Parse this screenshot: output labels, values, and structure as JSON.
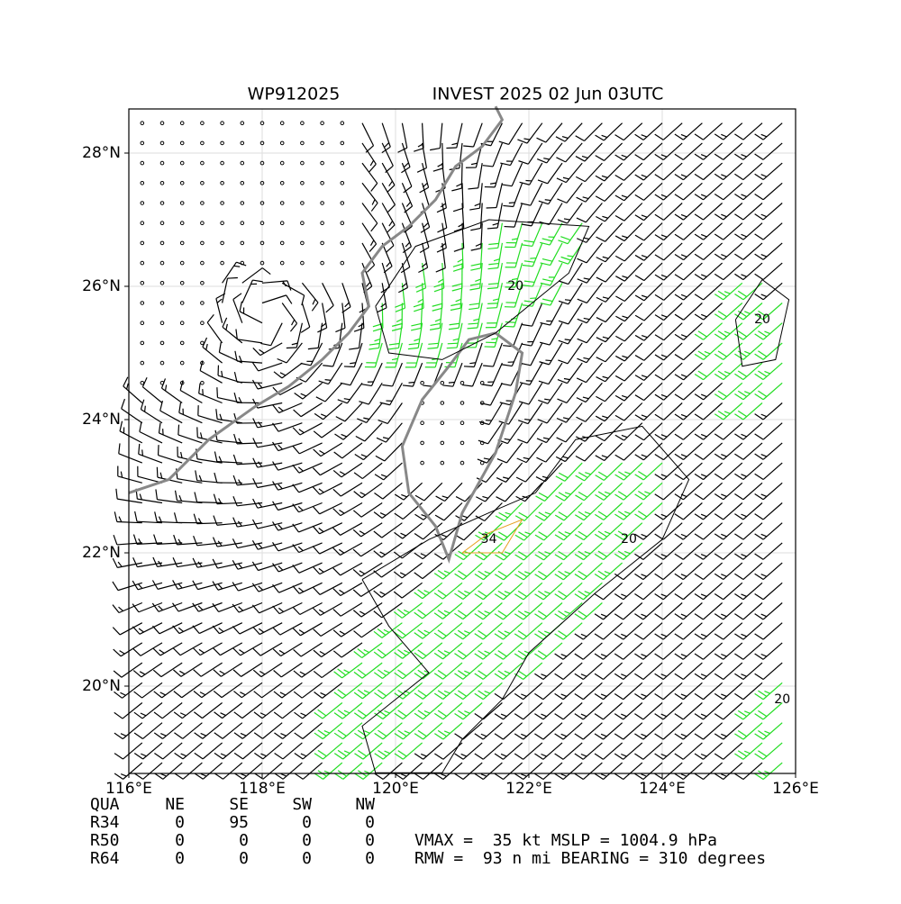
{
  "header": {
    "left": "WP912025",
    "right": "INVEST 2025 02 Jun 03UTC"
  },
  "axes": {
    "x_ticks": [
      "116°E",
      "118°E",
      "120°E",
      "122°E",
      "124°E",
      "126°E"
    ],
    "y_ticks": [
      "20°N",
      "22°N",
      "24°N",
      "26°N",
      "28°N"
    ]
  },
  "contour_labels": [
    "20",
    "20",
    "20",
    "20",
    "34"
  ],
  "table": {
    "header": [
      "QUA",
      "NE",
      "SE",
      "SW",
      "NW"
    ],
    "rows": [
      [
        "R34",
        "0",
        "95",
        "0",
        "0"
      ],
      [
        "R50",
        "0",
        "0",
        "0",
        "0"
      ],
      [
        "R64",
        "0",
        "0",
        "0",
        "0"
      ]
    ]
  },
  "info": [
    "VMAX =  35 kt MSLP = 1004.9 hPa",
    "RMW =  93 n mi BEARING = 310 degrees"
  ]
}
